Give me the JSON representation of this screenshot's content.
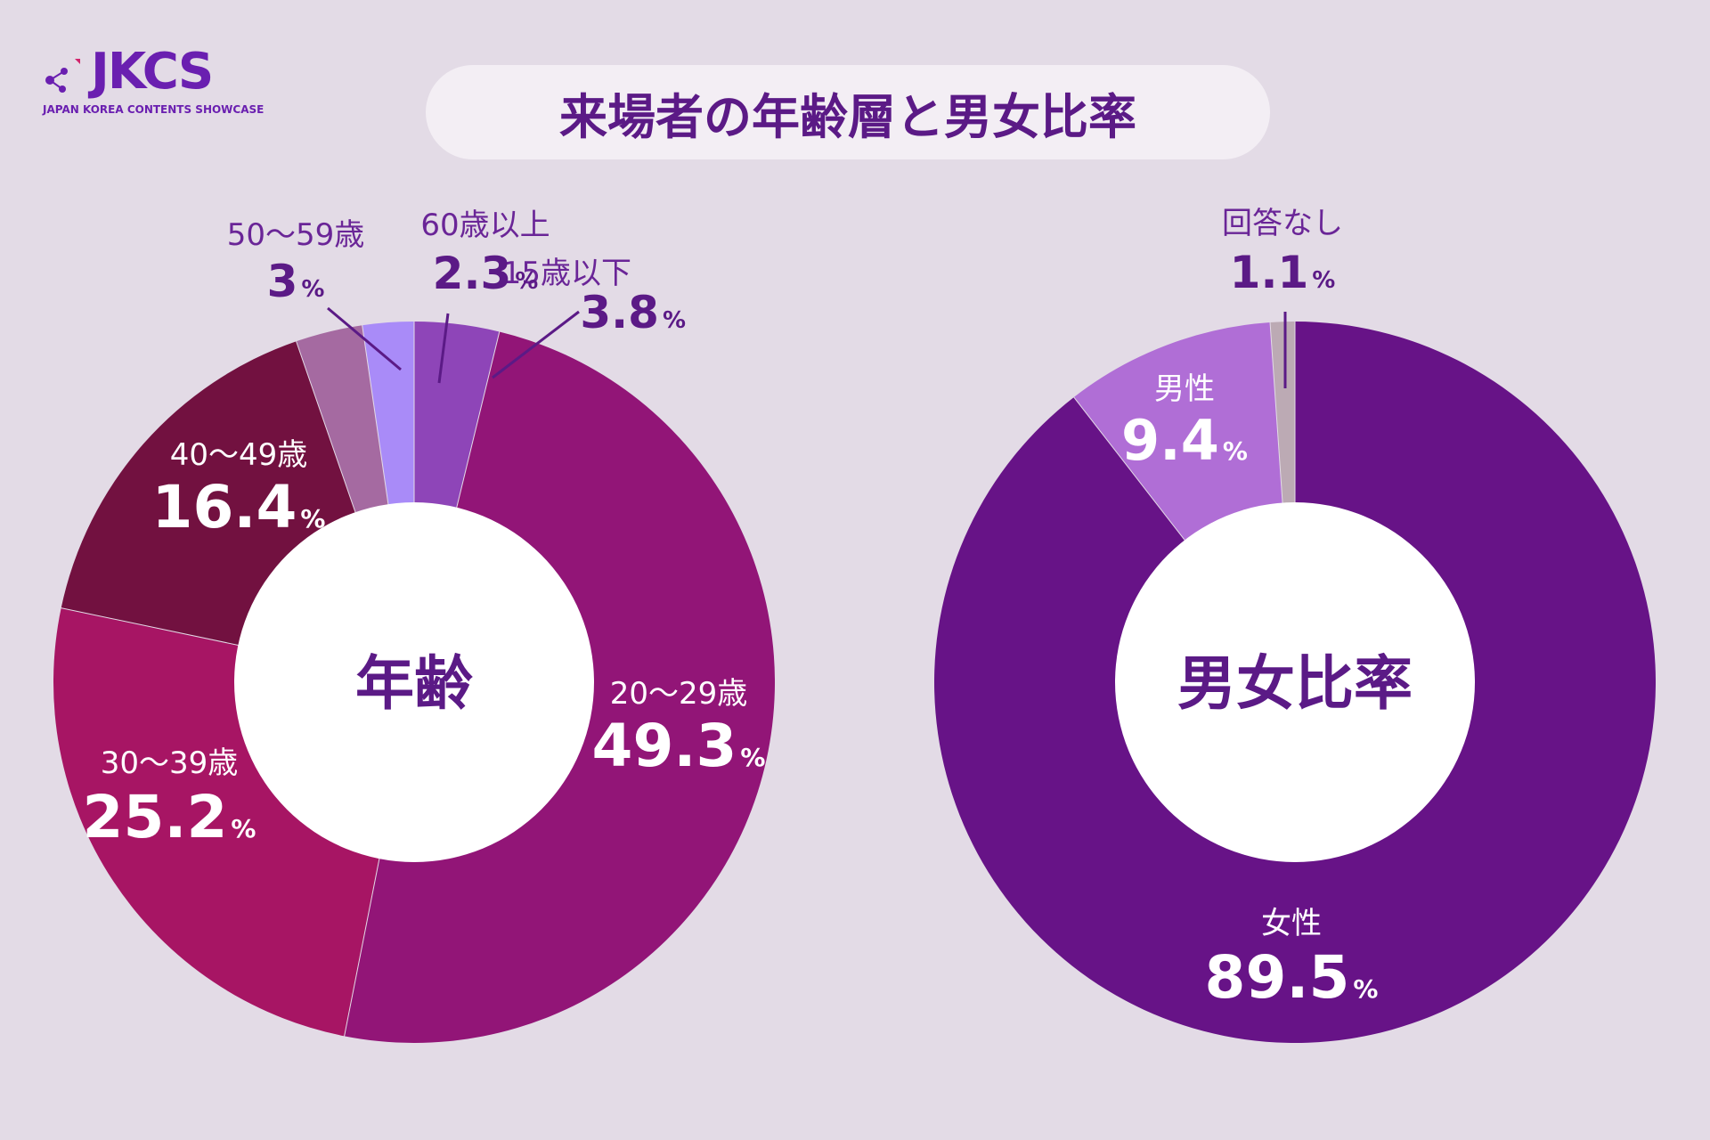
{
  "logo": {
    "text": "JKCS",
    "tagline": "JAPAN KOREA CONTENTS SHOWCASE"
  },
  "title": "来場者の年齢層と男女比率",
  "colors": {
    "background": "#e3dbe6",
    "title_text": "#5b1a86"
  },
  "chart_data": [
    {
      "type": "pie",
      "donut": true,
      "center_label": "年齢",
      "unit": "%",
      "slices": [
        {
          "label": "15歳以下",
          "value_text": "3.8",
          "value": 3.8,
          "color": "#8e45b8"
        },
        {
          "label": "20〜29歳",
          "value_text": "49.3",
          "value": 49.3,
          "color": "#921577"
        },
        {
          "label": "30〜39歳",
          "value_text": "25.2",
          "value": 25.2,
          "color": "#a71564"
        },
        {
          "label": "40〜49歳",
          "value_text": "16.4",
          "value": 16.4,
          "color": "#721140"
        },
        {
          "label": "50〜59歳",
          "value_text": "3",
          "value": 3,
          "color": "#a56aa1"
        },
        {
          "label": "60歳以上",
          "value_text": "2.3",
          "value": 2.3,
          "color": "#a98bf8"
        }
      ]
    },
    {
      "type": "pie",
      "donut": true,
      "center_label": "男女比率",
      "unit": "%",
      "slices": [
        {
          "label": "女性",
          "value_text": "89.5",
          "value": 89.5,
          "color": "#671387"
        },
        {
          "label": "男性",
          "value_text": "9.4",
          "value": 9.4,
          "color": "#b06ed6"
        },
        {
          "label": "回答なし",
          "value_text": "1.1",
          "value": 1.1,
          "color": "#bcaab4"
        }
      ]
    }
  ]
}
